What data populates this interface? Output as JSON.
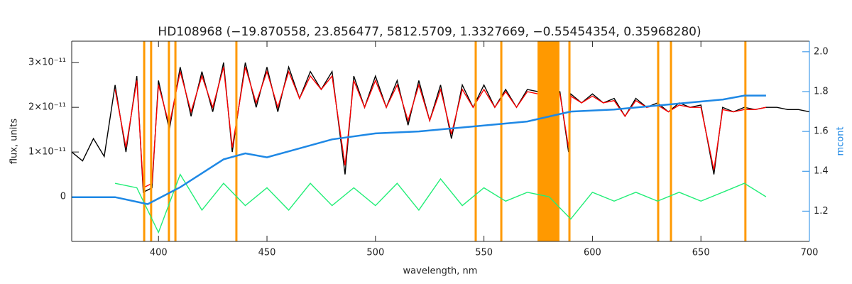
{
  "chart_data": {
    "type": "line",
    "title": "HD108968    (−19.870558, 23.856477, 5812.5709, 1.3327669, −0.55454354, 0.35968280)",
    "x_label": "wavelength, nm",
    "y_label": "flux, units",
    "y2_label": "mcont",
    "xlim": [
      360,
      700
    ],
    "xticks": [
      400,
      450,
      500,
      550,
      600,
      650,
      700
    ],
    "ylim": [
      -1e-11,
      3.48e-11
    ],
    "yticks": [
      0,
      {
        "value": 1e-11,
        "label": "1×10⁻¹¹"
      },
      {
        "value": 2e-11,
        "label": "2×10⁻¹¹"
      },
      {
        "value": 3e-11,
        "label": "3×10⁻¹¹"
      }
    ],
    "y2lim": [
      1.048,
      2.053
    ],
    "y2ticks": [
      1.2,
      1.4,
      1.6,
      1.8,
      {
        "value": 2,
        "label": "2.0"
      }
    ],
    "y2_color": "#1e88e5",
    "mask_color": "#ff9900",
    "masked_lines": [
      393.4,
      396.6,
      404.8,
      407.8,
      435.9,
      546.2,
      558,
      589.4,
      630.3,
      636.2,
      670.5
    ],
    "masked_bands": [
      [
        574.7,
        584.8
      ]
    ],
    "series": [
      {
        "color": "#000000",
        "x": [
          360,
          365,
          370,
          375,
          380,
          385,
          390,
          393,
          397,
          400,
          405,
          410,
          415,
          420,
          425,
          430,
          434,
          440,
          445,
          450,
          455,
          460,
          465,
          470,
          475,
          480,
          486,
          490,
          495,
          500,
          505,
          510,
          515,
          520,
          525,
          530,
          535,
          540,
          545,
          550,
          555,
          560,
          565,
          570,
          575,
          580,
          585,
          589,
          590,
          595,
          600,
          605,
          610,
          615,
          620,
          625,
          630,
          635,
          640,
          645,
          650,
          656,
          660,
          665,
          670,
          675,
          680,
          685,
          690,
          695,
          700
        ],
        "values": [
          1e-11,
          8e-12,
          1.3e-11,
          9e-12,
          2.5e-11,
          1e-11,
          2.7e-11,
          1e-12,
          2e-12,
          2.6e-11,
          1.5e-11,
          2.9e-11,
          1.8e-11,
          2.8e-11,
          1.9e-11,
          3e-11,
          1e-11,
          3e-11,
          2e-11,
          2.9e-11,
          1.9e-11,
          2.9e-11,
          2.2e-11,
          2.8e-11,
          2.4e-11,
          2.8e-11,
          5e-12,
          2.7e-11,
          2e-11,
          2.7e-11,
          2e-11,
          2.6e-11,
          1.6e-11,
          2.6e-11,
          1.7e-11,
          2.5e-11,
          1.3e-11,
          2.5e-11,
          2e-11,
          2.5e-11,
          2e-11,
          2.4e-11,
          2e-11,
          2.4e-11,
          2.35e-11,
          2.4e-11,
          2.35e-11,
          1e-11,
          2.3e-11,
          2.1e-11,
          2.3e-11,
          2.1e-11,
          2.2e-11,
          1.8e-11,
          2.2e-11,
          2e-11,
          2.1e-11,
          1.9e-11,
          2.1e-11,
          2e-11,
          2.05e-11,
          5e-12,
          2e-11,
          1.9e-11,
          2e-11,
          1.95e-11,
          2e-11,
          2e-11,
          1.95e-11,
          1.95e-11,
          1.9e-11
        ]
      },
      {
        "color": "#ff0000",
        "x": [
          380,
          385,
          390,
          393,
          397,
          400,
          405,
          410,
          415,
          420,
          425,
          430,
          434,
          440,
          445,
          450,
          455,
          460,
          465,
          470,
          475,
          480,
          486,
          490,
          495,
          500,
          505,
          510,
          515,
          520,
          525,
          530,
          535,
          540,
          545,
          550,
          555,
          560,
          565,
          570,
          575,
          580,
          585,
          589,
          590,
          595,
          600,
          605,
          610,
          615,
          620,
          625,
          630,
          635,
          640,
          645,
          650,
          656,
          660,
          665,
          670,
          675,
          680
        ],
        "values": [
          2.4e-11,
          1.1e-11,
          2.6e-11,
          2e-12,
          3e-12,
          2.5e-11,
          1.6e-11,
          2.8e-11,
          1.9e-11,
          2.7e-11,
          2e-11,
          2.9e-11,
          1.1e-11,
          2.9e-11,
          2.1e-11,
          2.8e-11,
          2e-11,
          2.8e-11,
          2.2e-11,
          2.7e-11,
          2.4e-11,
          2.7e-11,
          7e-12,
          2.6e-11,
          2e-11,
          2.6e-11,
          2e-11,
          2.5e-11,
          1.7e-11,
          2.5e-11,
          1.7e-11,
          2.4e-11,
          1.4e-11,
          2.4e-11,
          2e-11,
          2.4e-11,
          2e-11,
          2.35e-11,
          2e-11,
          2.35e-11,
          2.3e-11,
          2.35e-11,
          2.3e-11,
          1.1e-11,
          2.25e-11,
          2.1e-11,
          2.25e-11,
          2.1e-11,
          2.15e-11,
          1.8e-11,
          2.15e-11,
          2e-11,
          2.05e-11,
          1.9e-11,
          2.05e-11,
          2e-11,
          2e-11,
          6e-12,
          1.95e-11,
          1.9e-11,
          1.95e-11,
          1.95e-11,
          2e-11
        ]
      },
      {
        "color": "#22ee77",
        "x": [
          380,
          390,
          400,
          410,
          420,
          430,
          440,
          450,
          460,
          470,
          480,
          490,
          500,
          510,
          520,
          530,
          540,
          550,
          560,
          570,
          580,
          590,
          600,
          610,
          620,
          630,
          640,
          650,
          660,
          670,
          680
        ],
        "values": [
          3e-12,
          2e-12,
          -8e-12,
          5e-12,
          -3e-12,
          3e-12,
          -2e-12,
          2e-12,
          -3e-12,
          3e-12,
          -2e-12,
          2e-12,
          -2e-12,
          3e-12,
          -3e-12,
          4e-12,
          -2e-12,
          2e-12,
          -1e-12,
          1e-12,
          0,
          -5e-12,
          1e-12,
          -1e-12,
          1e-12,
          -1e-12,
          1e-12,
          -1e-12,
          1e-12,
          3e-12,
          0
        ]
      },
      {
        "color": "#1e88e5",
        "axis": "y2",
        "x": [
          360,
          380,
          395,
          410,
          430,
          440,
          450,
          460,
          480,
          500,
          520,
          550,
          570,
          590,
          610,
          630,
          660,
          670,
          680
        ],
        "values": [
          1.27,
          1.27,
          1.235,
          1.32,
          1.46,
          1.49,
          1.47,
          1.5,
          1.56,
          1.59,
          1.6,
          1.63,
          1.65,
          1.7,
          1.71,
          1.73,
          1.76,
          1.78,
          1.78
        ]
      }
    ]
  }
}
